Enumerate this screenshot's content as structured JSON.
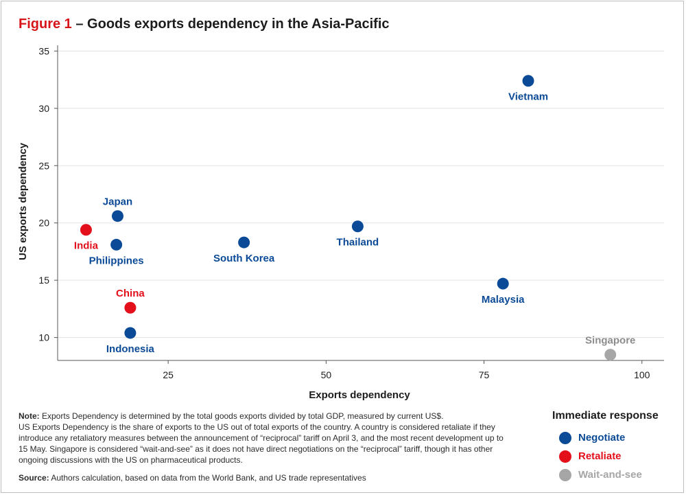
{
  "title": {
    "figure_label": "Figure 1",
    "text": "– Goods exports dependency in the Asia-Pacific"
  },
  "colors": {
    "negotiate": "#0b4a97",
    "retaliate": "#e3101b",
    "wait": "#a6a6a6",
    "singapore_label": "#8c8c8c",
    "grid": "#e3e3e3",
    "axis": "#555555"
  },
  "chart_data": {
    "type": "scatter",
    "title": "Goods exports dependency in the Asia-Pacific",
    "xlabel": "Exports dependency",
    "ylabel": "US exports dependency",
    "xlim": [
      7.5,
      103.5
    ],
    "ylim": [
      8,
      35.5
    ],
    "xticks": [
      25,
      50,
      75,
      100
    ],
    "yticks": [
      10,
      15,
      20,
      25,
      30,
      35
    ],
    "grid": "horizontal",
    "legend_title": "Immediate response",
    "points": [
      {
        "label": "Vietnam",
        "x": 82.0,
        "y": 32.4,
        "response": "Negotiate",
        "label_pos": "below"
      },
      {
        "label": "Japan",
        "x": 17.0,
        "y": 20.6,
        "response": "Negotiate",
        "label_pos": "above"
      },
      {
        "label": "India",
        "x": 12.0,
        "y": 19.4,
        "response": "Retaliate",
        "label_pos": "below"
      },
      {
        "label": "Philippines",
        "x": 16.8,
        "y": 18.1,
        "response": "Negotiate",
        "label_pos": "below"
      },
      {
        "label": "South Korea",
        "x": 37.0,
        "y": 18.3,
        "response": "Negotiate",
        "label_pos": "below"
      },
      {
        "label": "Thailand",
        "x": 55.0,
        "y": 19.7,
        "response": "Negotiate",
        "label_pos": "below"
      },
      {
        "label": "Malaysia",
        "x": 78.0,
        "y": 14.7,
        "response": "Negotiate",
        "label_pos": "below"
      },
      {
        "label": "China",
        "x": 19.0,
        "y": 12.6,
        "response": "Retaliate",
        "label_pos": "above"
      },
      {
        "label": "Indonesia",
        "x": 19.0,
        "y": 10.4,
        "response": "Negotiate",
        "label_pos": "below"
      },
      {
        "label": "Singapore",
        "x": 95.0,
        "y": 8.5,
        "response": "Wait-and-see",
        "label_pos": "above"
      }
    ]
  },
  "notes": {
    "note_label": "Note:",
    "note_text": " Exports Dependency is determined by the total goods exports divided by total GDP, measured by current US$.",
    "note_text_2": "US Exports Dependency is the share of exports to the US out of total exports of the country. A country is considered retaliate if they introduce any retaliatory measures between the announcement of “reciprocal” tariff on April 3, and the most recent development up to 15 May. Singapore is considered “wait-and-see” as it does not have direct negotiations on the “reciprocal” tariff, though it has other ongoing discussions with the US on pharmaceutical products.",
    "source_label": "Source:",
    "source_text": " Authors calculation, based on data from the World Bank, and US trade representatives"
  },
  "legend": {
    "title": "Immediate response",
    "items": [
      {
        "label": "Negotiate",
        "color": "#0b4a97"
      },
      {
        "label": "Retaliate",
        "color": "#e3101b"
      },
      {
        "label": "Wait-and-see",
        "color": "#a6a6a6"
      }
    ]
  }
}
